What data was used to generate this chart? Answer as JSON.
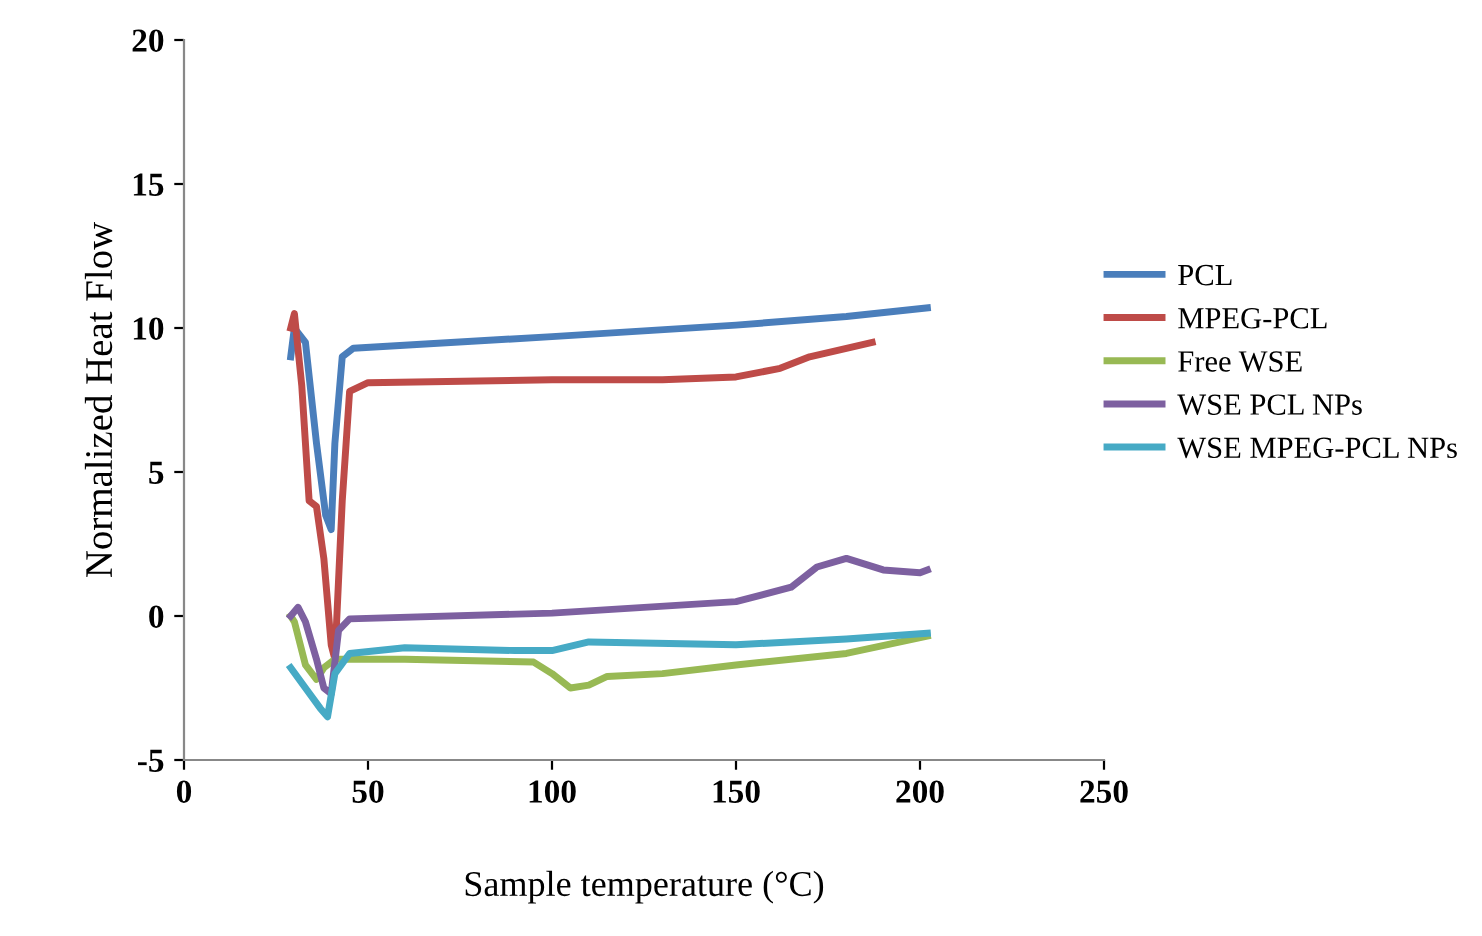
{
  "chart_data": {
    "type": "line",
    "xlabel": "Sample temperature (°C)",
    "ylabel": "Normalized Heat Flow",
    "xlim": [
      0,
      250
    ],
    "ylim": [
      -5,
      20
    ],
    "xticks": [
      0,
      50,
      100,
      150,
      200,
      250
    ],
    "yticks": [
      -5,
      0,
      5,
      10,
      15,
      20
    ],
    "grid": false,
    "legend": "right",
    "marker": "none",
    "line_style": "solid",
    "series": [
      {
        "name": "PCL",
        "color": "#4a7ebb",
        "x": [
          29,
          30,
          33,
          36,
          38.5,
          40,
          41,
          43,
          46,
          100,
          150,
          180,
          202
        ],
        "values": [
          9,
          10,
          9.5,
          6,
          3.5,
          3,
          6,
          9,
          9.3,
          9.7,
          10.1,
          10.4,
          10.7
        ]
      },
      {
        "name": "MPEG-PCL",
        "color": "#be4b48",
        "x": [
          29,
          30,
          32,
          34,
          36,
          38,
          40,
          41,
          43,
          45,
          50,
          100,
          130,
          150,
          162,
          170,
          187
        ],
        "values": [
          10,
          10.5,
          8,
          4,
          3.8,
          2,
          -1,
          -1.5,
          4,
          7.8,
          8.1,
          8.2,
          8.2,
          8.3,
          8.6,
          9,
          9.5
        ]
      },
      {
        "name": "Free WSE",
        "color": "#98b954",
        "x": [
          29,
          30,
          33,
          36,
          38,
          41,
          60,
          95,
          100,
          105,
          110,
          115,
          130,
          150,
          180,
          202
        ],
        "values": [
          0,
          -0.2,
          -1.7,
          -2.2,
          -1.8,
          -1.5,
          -1.5,
          -1.6,
          -2,
          -2.5,
          -2.4,
          -2.1,
          -2,
          -1.7,
          -1.3,
          -0.7
        ]
      },
      {
        "name": "WSE PCL NPs",
        "color": "#7d60a0",
        "x": [
          29,
          31,
          33,
          36,
          38,
          40,
          42,
          45,
          100,
          150,
          165,
          172,
          180,
          190,
          200,
          202
        ],
        "values": [
          0,
          0.3,
          -0.2,
          -1.5,
          -2.5,
          -2.7,
          -0.5,
          -0.1,
          0.1,
          0.5,
          1,
          1.7,
          2,
          1.6,
          1.5,
          1.6
        ]
      },
      {
        "name": "WSE MPEG-PCL NPs",
        "color": "#46aac5",
        "x": [
          29,
          33,
          37,
          39,
          41,
          45,
          60,
          90,
          100,
          110,
          150,
          180,
          202
        ],
        "values": [
          -1.8,
          -2.5,
          -3.2,
          -3.5,
          -2,
          -1.3,
          -1.1,
          -1.2,
          -1.2,
          -0.9,
          -1,
          -0.8,
          -0.6
        ]
      }
    ]
  }
}
